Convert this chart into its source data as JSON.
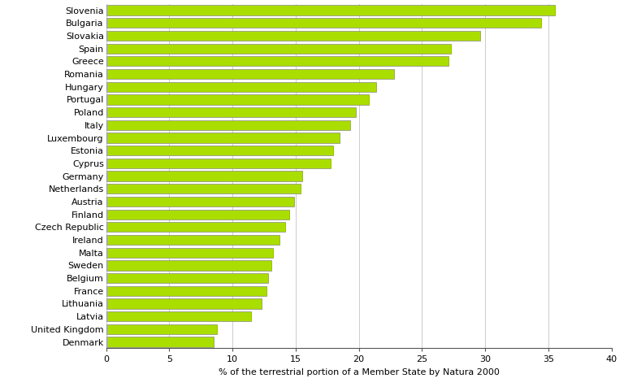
{
  "countries": [
    "Slovenia",
    "Bulgaria",
    "Slovakia",
    "Spain",
    "Greece",
    "Romania",
    "Hungary",
    "Portugal",
    "Poland",
    "Italy",
    "Luxembourg",
    "Estonia",
    "Cyprus",
    "Germany",
    "Netherlands",
    "Austria",
    "Finland",
    "Czech Republic",
    "Ireland",
    "Malta",
    "Sweden",
    "Belgium",
    "France",
    "Lithuania",
    "Latvia",
    "United Kingdom",
    "Denmark"
  ],
  "values": [
    35.5,
    34.4,
    29.6,
    27.3,
    27.1,
    22.8,
    21.4,
    20.8,
    19.8,
    19.3,
    18.5,
    18.0,
    17.8,
    15.5,
    15.4,
    14.9,
    14.5,
    14.2,
    13.7,
    13.2,
    13.1,
    12.8,
    12.7,
    12.3,
    11.5,
    8.8,
    8.5
  ],
  "bar_color": "#aadd00",
  "bar_edge_color": "#888888",
  "xlabel": "% of the terrestrial portion of a Member State by Natura 2000",
  "xlim": [
    0,
    40
  ],
  "xticks": [
    0,
    5,
    10,
    15,
    20,
    25,
    30,
    35,
    40
  ],
  "background_color": "#ffffff",
  "grid_color": "#cccccc",
  "bar_height": 0.78,
  "xlabel_fontsize": 8,
  "tick_fontsize": 8,
  "label_fontsize": 8
}
